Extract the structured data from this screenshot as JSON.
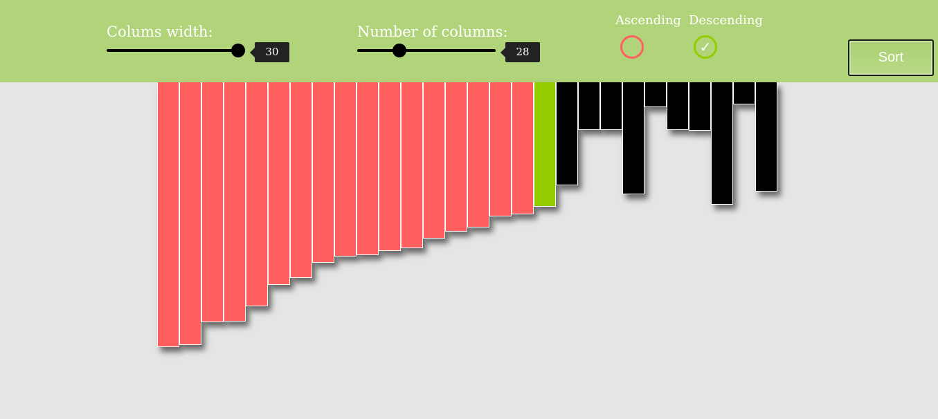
{
  "controls": {
    "width_label": "Colums width:",
    "width_value": "30",
    "width_fraction": 1.0,
    "columns_label": "Number of columns:",
    "columns_value": "28",
    "columns_fraction": 0.3,
    "ascending_label": "Ascending",
    "descending_label": "Descending",
    "selected_order": "descending",
    "check_glyph": "✓",
    "sort_label": "Sort"
  },
  "colors": {
    "topbar": "#b1d37a",
    "background": "#e5e5e5",
    "sorted_bar": "#ff5f5f",
    "current_bar": "#93cd00",
    "unsorted_bar": "#000000",
    "ascending_ring": "#ff5f5f",
    "descending_ring": "#93cd00"
  },
  "bars": {
    "values": [
      383,
      380,
      347,
      346,
      324,
      293,
      283,
      261,
      252,
      250,
      244,
      240,
      226,
      216,
      210,
      194,
      191,
      180,
      149,
      69,
      69,
      162,
      36,
      69,
      70,
      177,
      32,
      158
    ],
    "states": [
      "sorted",
      "sorted",
      "sorted",
      "sorted",
      "sorted",
      "sorted",
      "sorted",
      "sorted",
      "sorted",
      "sorted",
      "sorted",
      "sorted",
      "sorted",
      "sorted",
      "sorted",
      "sorted",
      "sorted",
      "current",
      "unsorted",
      "unsorted",
      "unsorted",
      "unsorted",
      "unsorted",
      "unsorted",
      "unsorted",
      "unsorted",
      "unsorted",
      "unsorted"
    ]
  }
}
